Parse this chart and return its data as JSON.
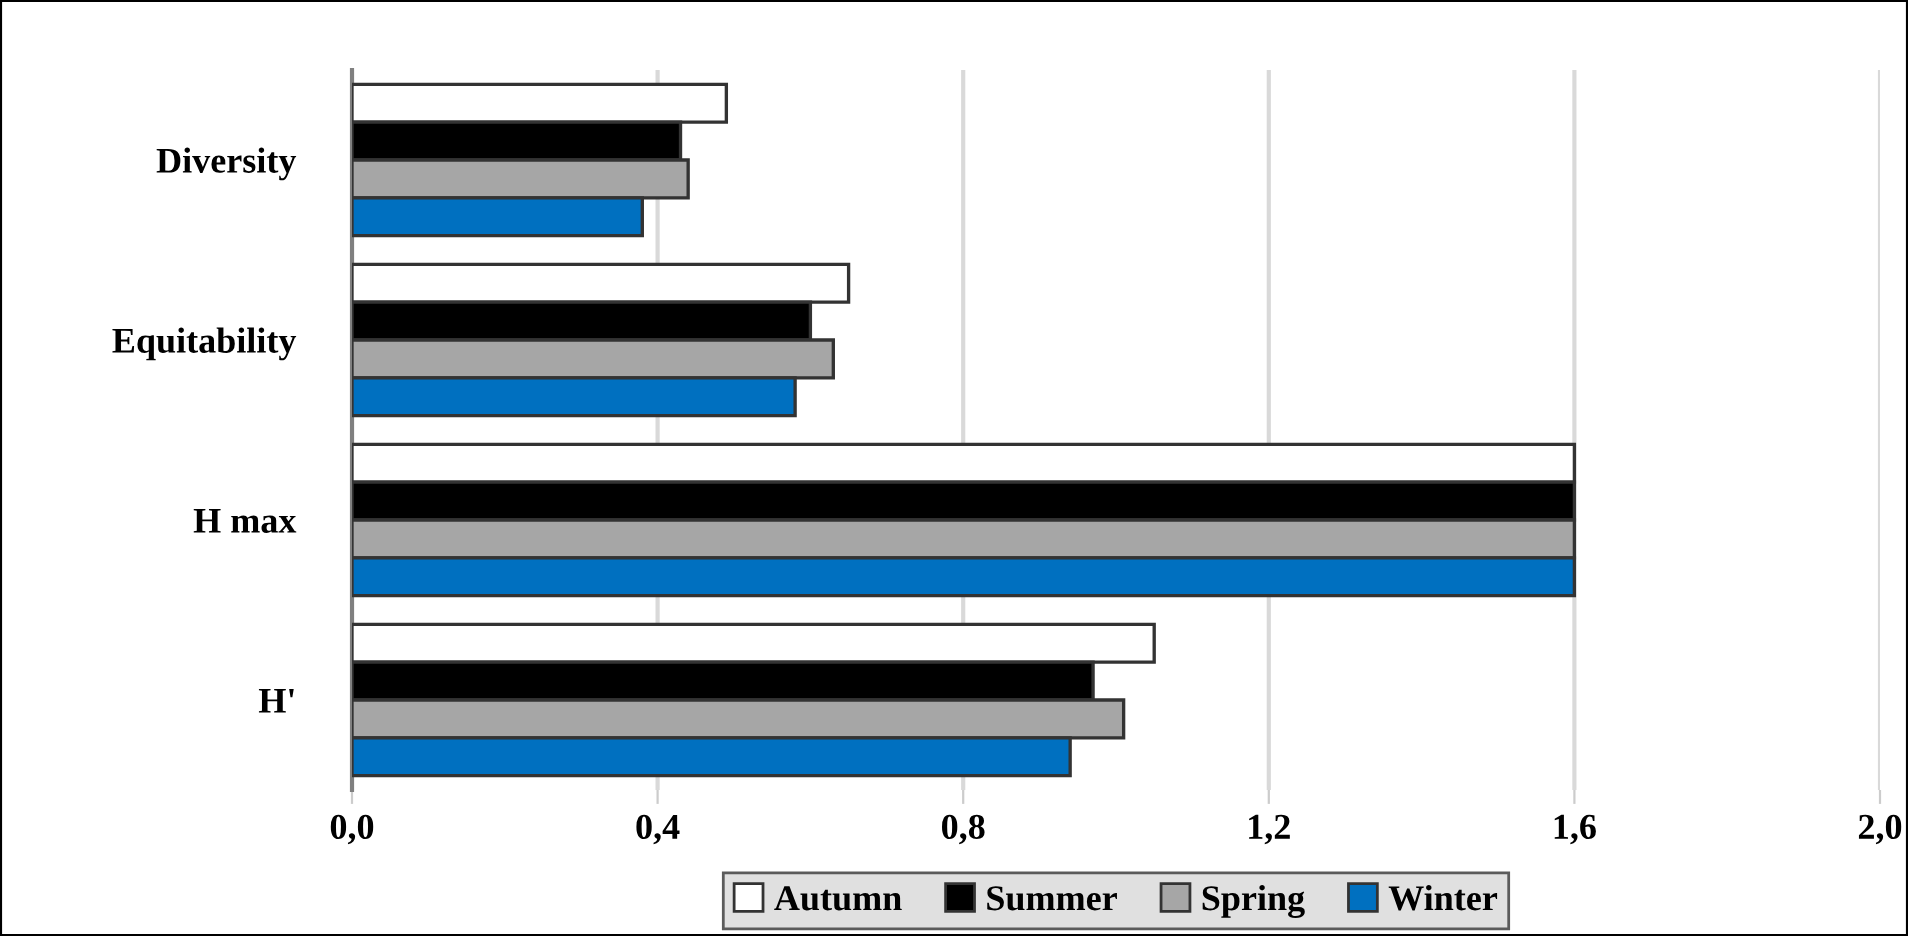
{
  "chart_data": {
    "type": "bar",
    "orientation": "horizontal",
    "categories": [
      "Diversity",
      "Equitability",
      "H max",
      "H'"
    ],
    "series": [
      {
        "name": "Autumn",
        "color": "#ffffff",
        "values": [
          0.49,
          0.65,
          1.6,
          1.05
        ]
      },
      {
        "name": "Summer",
        "color": "#000000",
        "values": [
          0.43,
          0.6,
          1.6,
          0.97
        ]
      },
      {
        "name": "Spring",
        "color": "#a6a6a6",
        "values": [
          0.44,
          0.63,
          1.6,
          1.01
        ]
      },
      {
        "name": "Winter",
        "color": "#0070c0",
        "values": [
          0.38,
          0.58,
          1.6,
          0.94
        ]
      }
    ],
    "xlim": [
      0,
      2.0
    ],
    "xticks": [
      {
        "value": 0,
        "label": "0,0"
      },
      {
        "value": 0.4,
        "label": "0,4"
      },
      {
        "value": 0.8,
        "label": "0,8"
      },
      {
        "value": 1.2,
        "label": "1,2"
      },
      {
        "value": 1.6,
        "label": "1,6"
      },
      {
        "value": 2.0,
        "label": "2,0"
      }
    ],
    "grid": "x",
    "legend": "bottom"
  }
}
